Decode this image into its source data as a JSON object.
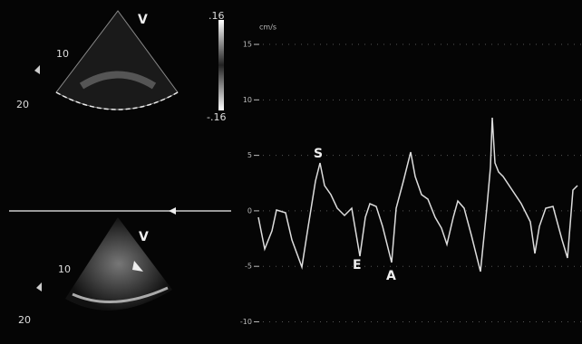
{
  "top_image": {
    "view_label": "V",
    "depth_labels": [
      "10",
      "20"
    ],
    "scale_top": ".16",
    "scale_bottom": "-.16"
  },
  "bottom_image": {
    "view_label": "V",
    "depth_labels": [
      "10",
      "20"
    ]
  },
  "doppler": {
    "unit": "cm/s",
    "ylim": [
      -12,
      19
    ],
    "yticks": [
      15,
      10,
      5,
      0,
      -5,
      -10
    ],
    "peak_labels": {
      "s": "S",
      "e": "E",
      "a": "A"
    }
  }
}
